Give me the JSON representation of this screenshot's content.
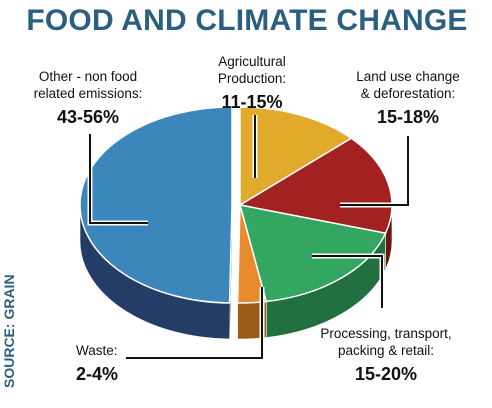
{
  "title": "FOOD AND CLIMATE CHANGE",
  "source": "SOURCE: GRAIN",
  "chart_data": {
    "type": "pie",
    "title": "FOOD AND CLIMATE CHANGE",
    "unit": "%",
    "slices": [
      {
        "label": "Agricultural Production:",
        "label_lines": [
          "Agricultural",
          "Production:"
        ],
        "value_text": "11-15%",
        "range": [
          11,
          15
        ],
        "color": "#e2aa2a",
        "side": "#a87b13"
      },
      {
        "label": "Land use change & deforestation:",
        "label_lines": [
          "Land use change",
          "& deforestation:"
        ],
        "value_text": "15-18%",
        "range": [
          15,
          18
        ],
        "color": "#a32121",
        "side": "#6a1414"
      },
      {
        "label": "Processing, transport, packing & retail:",
        "label_lines": [
          "Processing, transport,",
          "packing & retail:"
        ],
        "value_text": "15-20%",
        "range": [
          15,
          20
        ],
        "color": "#33a761",
        "side": "#22703f"
      },
      {
        "label": "Waste:",
        "label_lines": [
          "Waste:"
        ],
        "value_text": "2-4%",
        "range": [
          2,
          4
        ],
        "color": "#e88a2c",
        "side": "#9b5a16"
      },
      {
        "label": "Other - non food related emissions:",
        "label_lines": [
          "Other - non food",
          "related emissions:"
        ],
        "value_text": "43-56%",
        "range": [
          43,
          56
        ],
        "color": "#3b86bb",
        "side": "#243d66"
      }
    ]
  }
}
